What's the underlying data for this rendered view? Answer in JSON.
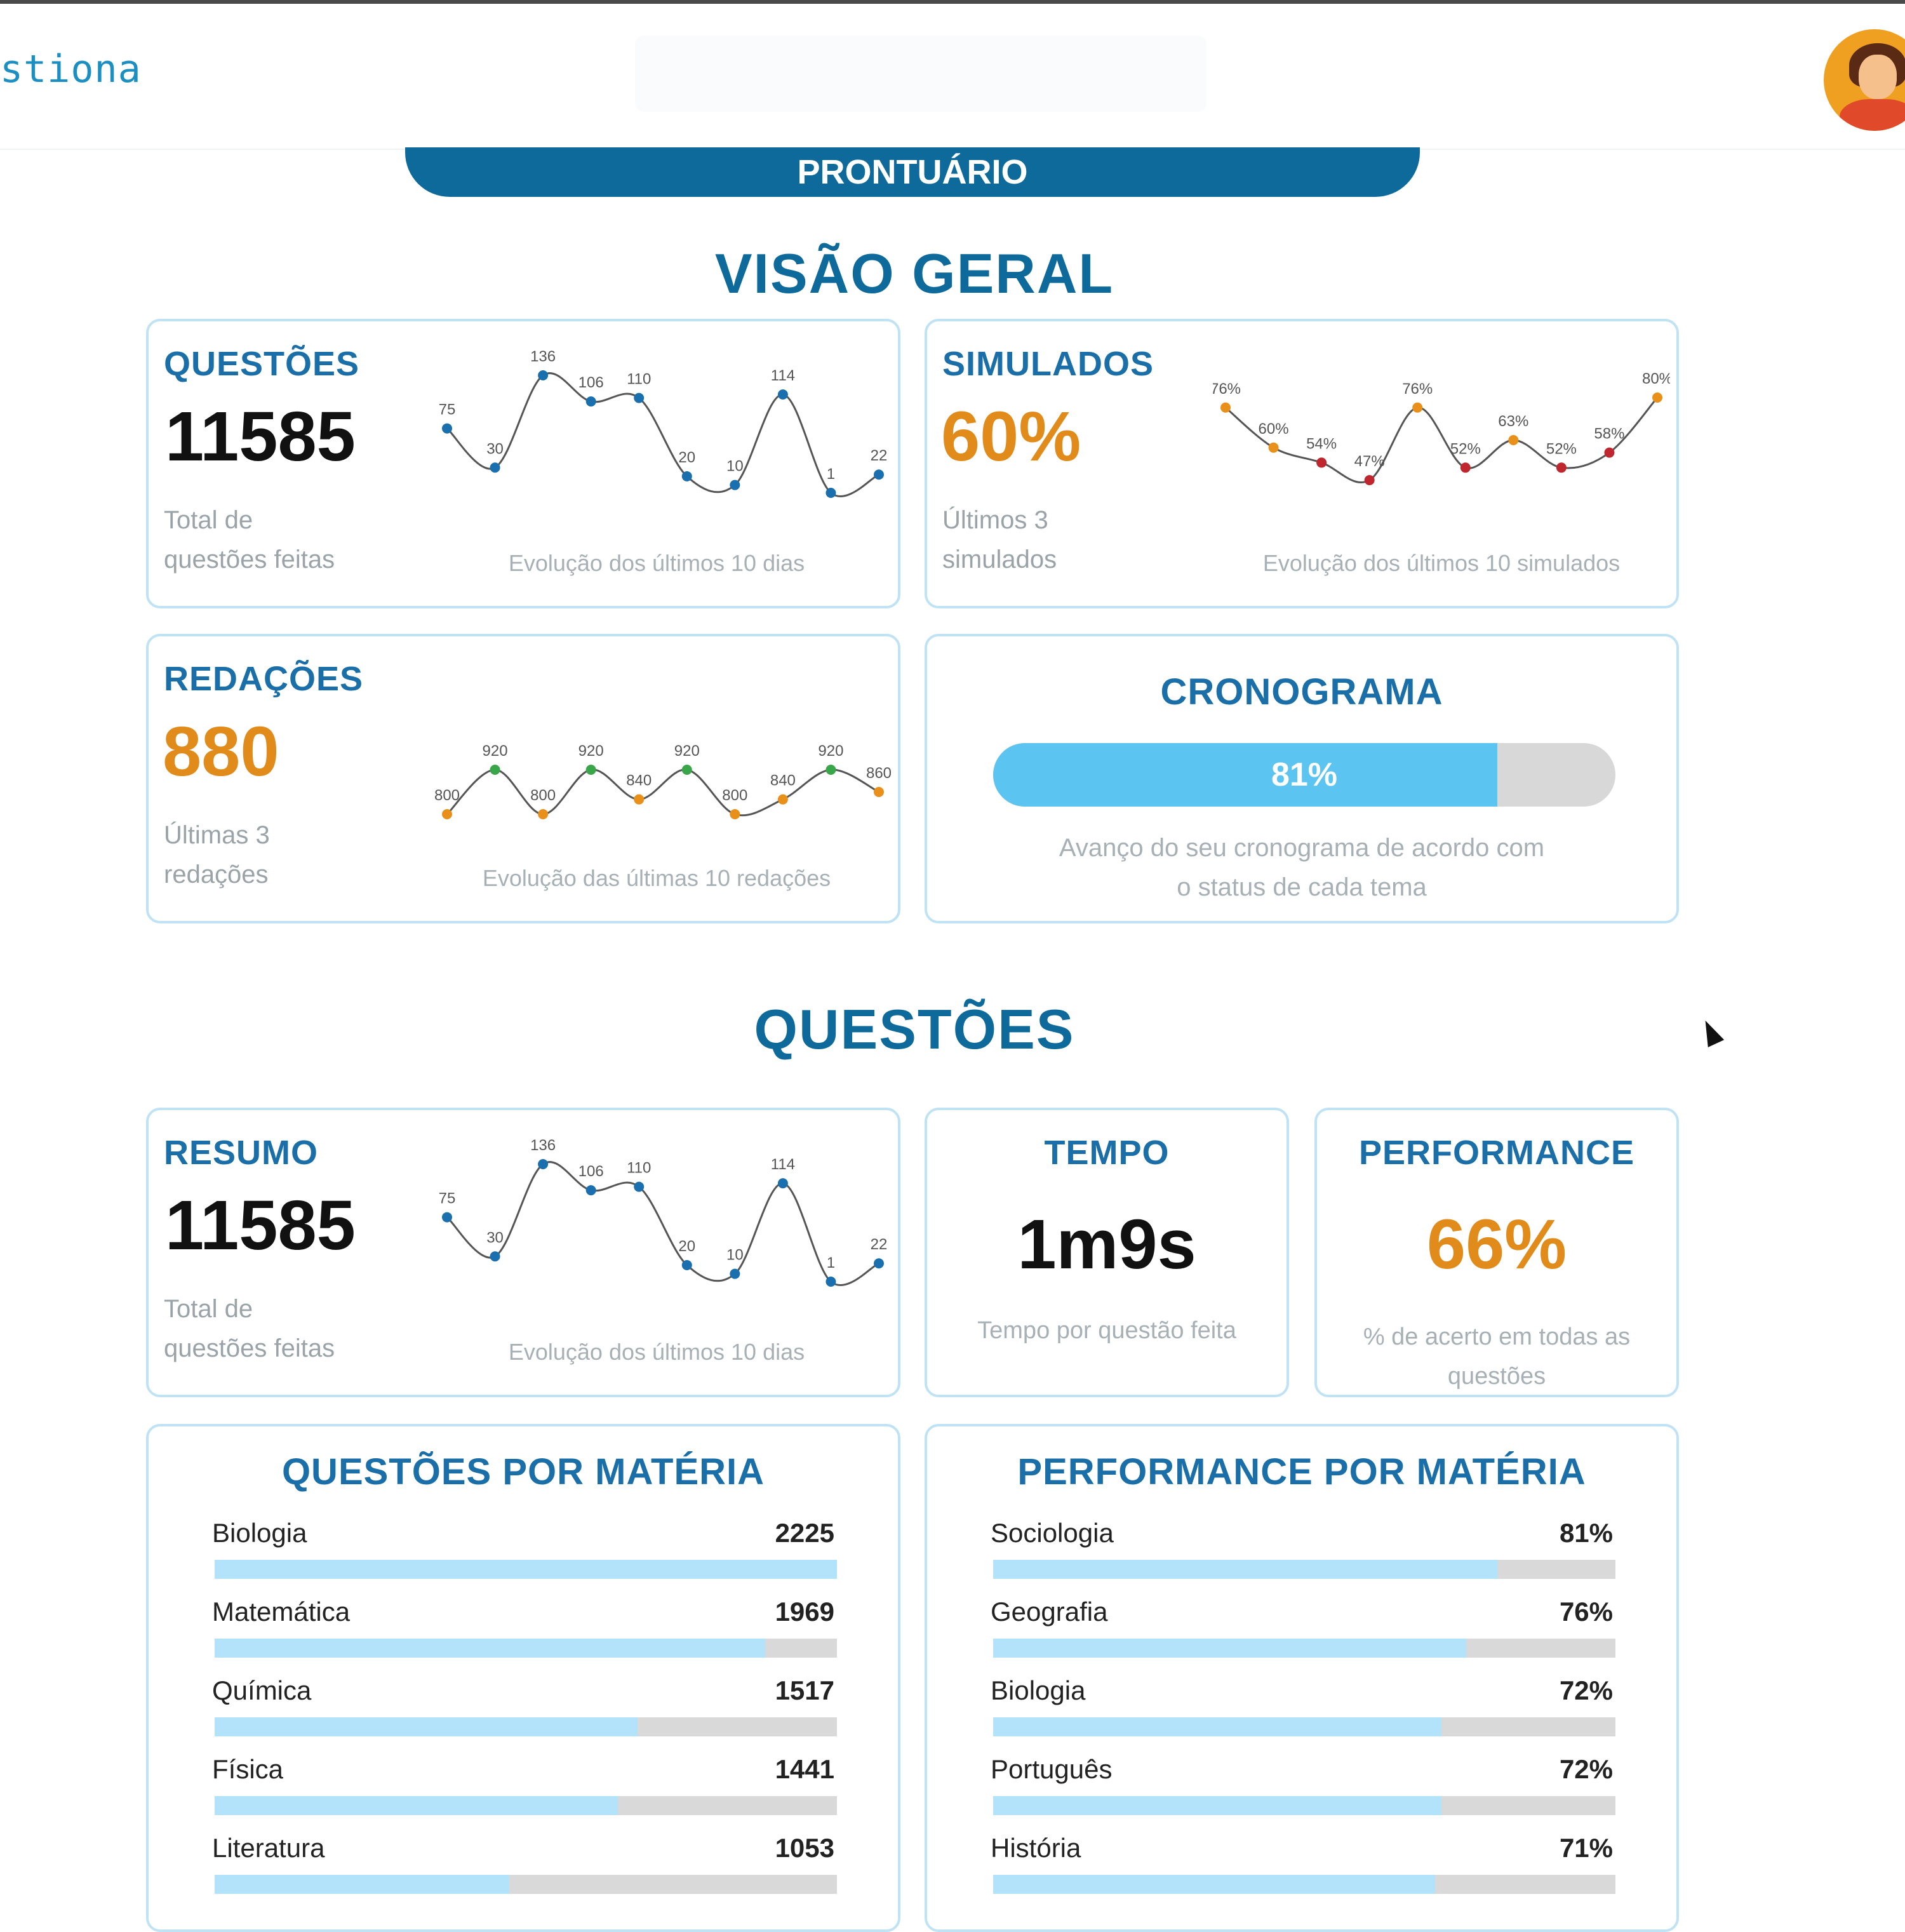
{
  "header": {
    "brand": "stiona"
  },
  "tab": {
    "label": "PRONTUÁRIO"
  },
  "sections": {
    "overview": "VISÃO GERAL",
    "questions": "QUESTÕES"
  },
  "overview": {
    "questoes": {
      "title": "QUESTÕES",
      "value": "11585",
      "sub_line1": "Total de",
      "sub_line2": "questões feitas",
      "caption": "Evolução dos últimos 10 dias",
      "points": [
        75,
        30,
        136,
        106,
        110,
        20,
        10,
        114,
        1,
        22
      ],
      "labels": [
        "75",
        "30",
        "136",
        "106",
        "110",
        "20",
        "10",
        "114",
        "1",
        "22"
      ],
      "color": "#1a6fae"
    },
    "simulados": {
      "title": "SIMULADOS",
      "value": "60%",
      "sub_line1": "Últimos 3",
      "sub_line2": "simulados",
      "caption": "Evolução dos últimos 10 simulados",
      "points": [
        76,
        60,
        54,
        47,
        76,
        52,
        63,
        52,
        58,
        80
      ],
      "labels": [
        "76%",
        "60%",
        "54%",
        "47%",
        "76%",
        "52%",
        "63%",
        "52%",
        "58%",
        "80%"
      ],
      "colors": [
        "#e8901a",
        "#e8901a",
        "#c0262d",
        "#c0262d",
        "#e8901a",
        "#c0262d",
        "#e8901a",
        "#c0262d",
        "#c0262d",
        "#e8901a"
      ]
    },
    "redacoes": {
      "title": "REDAÇÕES",
      "value": "880",
      "sub_line1": "Últimas 3",
      "sub_line2": "redações",
      "caption": "Evolução das últimas 10 redações",
      "points": [
        800,
        920,
        800,
        920,
        840,
        920,
        800,
        840,
        920,
        860
      ],
      "labels": [
        "800",
        "920",
        "800",
        "920",
        "840",
        "920",
        "800",
        "840",
        "920",
        "860"
      ],
      "colors": [
        "#e8901a",
        "#3aa64a",
        "#e8901a",
        "#3aa64a",
        "#e8901a",
        "#3aa64a",
        "#e8901a",
        "#e8901a",
        "#3aa64a",
        "#e8901a"
      ]
    },
    "cronograma": {
      "title": "CRONOGRAMA",
      "progress": 81,
      "progress_label": "81%",
      "caption_line1": "Avanço do seu cronograma de acordo com",
      "caption_line2": "o status de cada tema"
    }
  },
  "questions": {
    "resumo": {
      "title": "RESUMO",
      "value": "11585",
      "sub_line1": "Total de",
      "sub_line2": "questões feitas",
      "caption": "Evolução dos últimos 10 dias",
      "points": [
        75,
        30,
        136,
        106,
        110,
        20,
        10,
        114,
        1,
        22
      ],
      "labels": [
        "75",
        "30",
        "136",
        "106",
        "110",
        "20",
        "10",
        "114",
        "1",
        "22"
      ],
      "color": "#1a6fae"
    },
    "tempo": {
      "title": "TEMPO",
      "value": "1m9s",
      "caption": "Tempo por questão feita"
    },
    "performance": {
      "title": "PERFORMANCE",
      "value": "66%",
      "caption_line1": "% de acerto em todas as",
      "caption_line2": "questões"
    },
    "por_materia": {
      "title": "QUESTÕES POR MATÉRIA",
      "rows": [
        {
          "label": "Biologia",
          "value": "2225",
          "fraction": 1.0
        },
        {
          "label": "Matemática",
          "value": "1969",
          "fraction": 0.885
        },
        {
          "label": "Química",
          "value": "1517",
          "fraction": 0.68
        },
        {
          "label": "Física",
          "value": "1441",
          "fraction": 0.648
        },
        {
          "label": "Literatura",
          "value": "1053",
          "fraction": 0.473
        }
      ]
    },
    "performance_materia": {
      "title": "PERFORMANCE POR MATÉRIA",
      "rows": [
        {
          "label": "Sociologia",
          "value": "81%",
          "fraction": 0.81
        },
        {
          "label": "Geografia",
          "value": "76%",
          "fraction": 0.76
        },
        {
          "label": "Biologia",
          "value": "72%",
          "fraction": 0.72
        },
        {
          "label": "Português",
          "value": "72%",
          "fraction": 0.72
        },
        {
          "label": "História",
          "value": "71%",
          "fraction": 0.71
        }
      ]
    }
  },
  "colors": {
    "accent": "#0e6a9b",
    "title": "#1b6fa8",
    "orange": "#e08b1a",
    "bar": "#b3e3fa",
    "progress": "#5bc4f1"
  }
}
